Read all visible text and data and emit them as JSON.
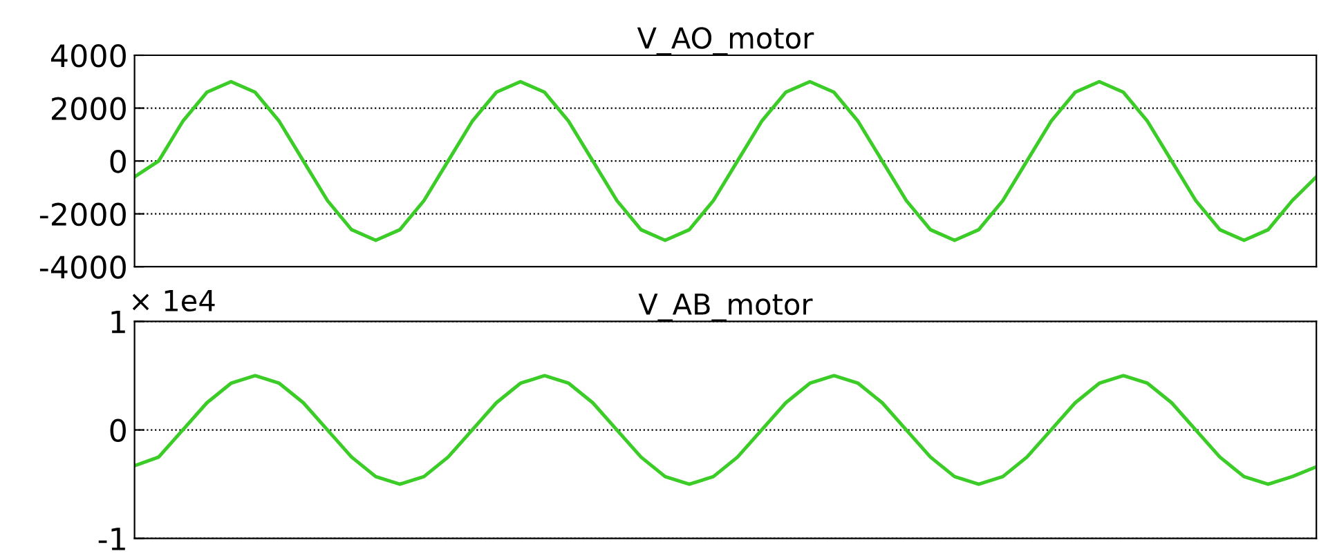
{
  "chart_data": [
    {
      "type": "line",
      "title": "V_AO_motor",
      "tick_labels": "y",
      "grid": "y",
      "line_style": "solid",
      "marker": "none",
      "categories": [
        null,
        null,
        null,
        null,
        null,
        null,
        null,
        null,
        null,
        null,
        null,
        null,
        null,
        null,
        null,
        null,
        null,
        null,
        null,
        null,
        null,
        null,
        null,
        null,
        null,
        null,
        null,
        null,
        null,
        null,
        null,
        null,
        null,
        null,
        null,
        null,
        null,
        null,
        null,
        null,
        null,
        null,
        null,
        null,
        null,
        null,
        null,
        null,
        null,
        null
      ],
      "ylim": [
        -4000,
        4000
      ],
      "yticks": [
        -4000,
        -2000,
        0,
        2000,
        4000
      ],
      "series": [
        {
          "color": "#3ccc28",
          "values": [
            -600,
            0,
            1500,
            2600,
            3000,
            2600,
            1500,
            0,
            -1500,
            -2600,
            -3000,
            -2600,
            -1500,
            0,
            1500,
            2600,
            3000,
            2600,
            1500,
            0,
            -1500,
            -2600,
            -3000,
            -2600,
            -1500,
            0,
            1500,
            2600,
            3000,
            2600,
            1500,
            0,
            -1500,
            -2600,
            -3000,
            -2600,
            -1500,
            0,
            1500,
            2600,
            3000,
            2600,
            1500,
            0,
            -1500,
            -2600,
            -3000,
            -2600,
            -1500,
            -600
          ]
        }
      ]
    },
    {
      "type": "line",
      "title": "V_AB_motor",
      "tick_labels": "y",
      "grid": "y",
      "line_style": "solid",
      "marker": "none",
      "annotations": [
        "× 1e4"
      ],
      "categories": [
        null,
        null,
        null,
        null,
        null,
        null,
        null,
        null,
        null,
        null,
        null,
        null,
        null,
        null,
        null,
        null,
        null,
        null,
        null,
        null,
        null,
        null,
        null,
        null,
        null,
        null,
        null,
        null,
        null,
        null,
        null,
        null,
        null,
        null,
        null,
        null,
        null,
        null,
        null,
        null,
        null,
        null,
        null,
        null,
        null,
        null,
        null,
        null,
        null,
        null
      ],
      "ylim": [
        -1,
        1
      ],
      "yticks": [
        -1,
        0,
        1
      ],
      "series": [
        {
          "color": "#3ccc28",
          "values": [
            -0.33,
            -0.25,
            0,
            0.25,
            0.43,
            0.5,
            0.43,
            0.25,
            0,
            -0.25,
            -0.43,
            -0.5,
            -0.43,
            -0.25,
            0,
            0.25,
            0.43,
            0.5,
            0.43,
            0.25,
            0,
            -0.25,
            -0.43,
            -0.5,
            -0.43,
            -0.25,
            0,
            0.25,
            0.43,
            0.5,
            0.43,
            0.25,
            0,
            -0.25,
            -0.43,
            -0.5,
            -0.43,
            -0.25,
            0,
            0.25,
            0.43,
            0.5,
            0.43,
            0.25,
            0,
            -0.25,
            -0.43,
            -0.5,
            -0.43,
            -0.34
          ]
        }
      ]
    }
  ]
}
